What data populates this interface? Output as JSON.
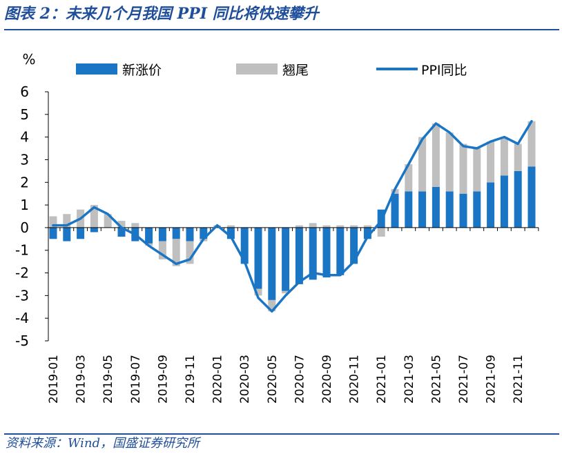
{
  "figure": {
    "title": "图表 2：未来几个月我国 PPI 同比将快速攀升",
    "source": "资料来源：Wind，国盛证券研究所"
  },
  "colors": {
    "new_price": "#1a75c4",
    "carryover": "#bfbfbf",
    "ppi": "#1a75c4",
    "title": "#1f4e9a"
  },
  "chart_data": {
    "type": "bar",
    "title": "未来几个月我国 PPI 同比将快速攀升",
    "ylabel": "%",
    "xlabel": "",
    "ylim": [
      -5,
      6
    ],
    "yticks": [
      6,
      5,
      4,
      3,
      2,
      1,
      0,
      -1,
      -2,
      -3,
      -4,
      -5
    ],
    "legend": [
      "新涨价",
      "翘尾",
      "PPI同比"
    ],
    "legend_position": "top",
    "categories": [
      "2019-01",
      "2019-02",
      "2019-03",
      "2019-04",
      "2019-05",
      "2019-06",
      "2019-07",
      "2019-08",
      "2019-09",
      "2019-10",
      "2019-11",
      "2019-12",
      "2020-01",
      "2020-02",
      "2020-03",
      "2020-04",
      "2020-05",
      "2020-06",
      "2020-07",
      "2020-08",
      "2020-09",
      "2020-10",
      "2020-11",
      "2020-12",
      "2021-01",
      "2021-02",
      "2021-03",
      "2021-04",
      "2021-05",
      "2021-06",
      "2021-07",
      "2021-08",
      "2021-09",
      "2021-10",
      "2021-11",
      "2021-12"
    ],
    "x_tick_labels": [
      "2019-01",
      "2019-03",
      "2019-05",
      "2019-07",
      "2019-09",
      "2019-11",
      "2020-01",
      "2020-03",
      "2020-05",
      "2020-07",
      "2020-09",
      "2020-11",
      "2021-01",
      "2021-03",
      "2021-05",
      "2021-07",
      "2021-09",
      "2021-11"
    ],
    "series": [
      {
        "name": "新涨价",
        "kind": "stacked-bar",
        "values": [
          -0.5,
          -0.6,
          -0.5,
          -0.2,
          0.0,
          -0.4,
          -0.6,
          -0.7,
          -0.6,
          -0.5,
          -0.6,
          -0.5,
          0.0,
          -0.5,
          -1.6,
          -2.7,
          -3.2,
          -2.8,
          -2.5,
          -2.3,
          -2.2,
          -2.1,
          -1.6,
          -0.5,
          0.8,
          1.5,
          1.6,
          1.6,
          1.8,
          1.6,
          1.5,
          1.6,
          2.0,
          2.3,
          2.5,
          2.7
        ]
      },
      {
        "name": "翘尾",
        "kind": "stacked-bar",
        "values": [
          0.5,
          0.6,
          0.8,
          1.0,
          0.6,
          0.3,
          0.2,
          -0.1,
          -0.8,
          -1.2,
          -1.0,
          -0.1,
          0.1,
          0.1,
          0.0,
          -0.3,
          -0.5,
          -0.1,
          0.1,
          0.2,
          0.1,
          0.1,
          0.1,
          0.1,
          -0.4,
          0.2,
          1.2,
          2.4,
          2.8,
          2.6,
          2.2,
          1.9,
          1.8,
          1.7,
          1.2,
          2.0
        ]
      },
      {
        "name": "PPI同比",
        "kind": "line",
        "values": [
          0.1,
          0.1,
          0.4,
          0.9,
          0.6,
          0.0,
          -0.3,
          -0.8,
          -1.2,
          -1.6,
          -1.4,
          -0.5,
          0.1,
          -0.4,
          -1.5,
          -3.1,
          -3.7,
          -3.0,
          -2.4,
          -2.0,
          -2.1,
          -2.1,
          -1.5,
          -0.4,
          0.3,
          1.7,
          2.8,
          3.9,
          4.6,
          4.2,
          3.6,
          3.5,
          3.8,
          4.0,
          3.7,
          4.7
        ]
      }
    ]
  }
}
